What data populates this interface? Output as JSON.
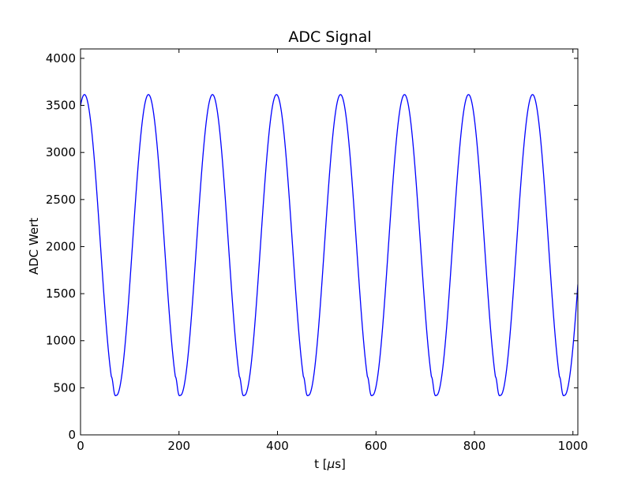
{
  "chart_data": {
    "type": "line",
    "title": "ADC Signal",
    "xlabel": "t [",
    "xlabel_mu": "μ",
    "xlabel_suffix": "s]",
    "ylabel": "ADC Wert",
    "xlim": [
      0,
      1010
    ],
    "ylim": [
      0,
      4100
    ],
    "xticks": [
      0,
      200,
      400,
      600,
      800,
      1000
    ],
    "yticks": [
      0,
      500,
      1000,
      1500,
      2000,
      2500,
      3000,
      3500,
      4000
    ],
    "grid": false,
    "line_color": "#0000ff",
    "series": [
      {
        "period": 130,
        "first_peak": 8,
        "max": 3615,
        "min": 420,
        "x": [
          0,
          8,
          60,
          63,
          66,
          73,
          138,
          190,
          193,
          196,
          203,
          268,
          320,
          323,
          326,
          333,
          398,
          450,
          453,
          456,
          463,
          528,
          580,
          583,
          586,
          593,
          658,
          710,
          713,
          716,
          723,
          788,
          840,
          843,
          846,
          853,
          918,
          970,
          973,
          976,
          983,
          1010
        ],
        "y": [
          3300,
          3615,
          470,
          420,
          470,
          420,
          3615,
          470,
          420,
          470,
          420,
          3615,
          470,
          420,
          470,
          420,
          3615,
          470,
          420,
          470,
          420,
          3615,
          470,
          420,
          470,
          420,
          3615,
          470,
          420,
          470,
          420,
          3615,
          470,
          420,
          470,
          420,
          3615,
          470,
          420,
          470,
          420,
          1500
        ]
      }
    ]
  }
}
